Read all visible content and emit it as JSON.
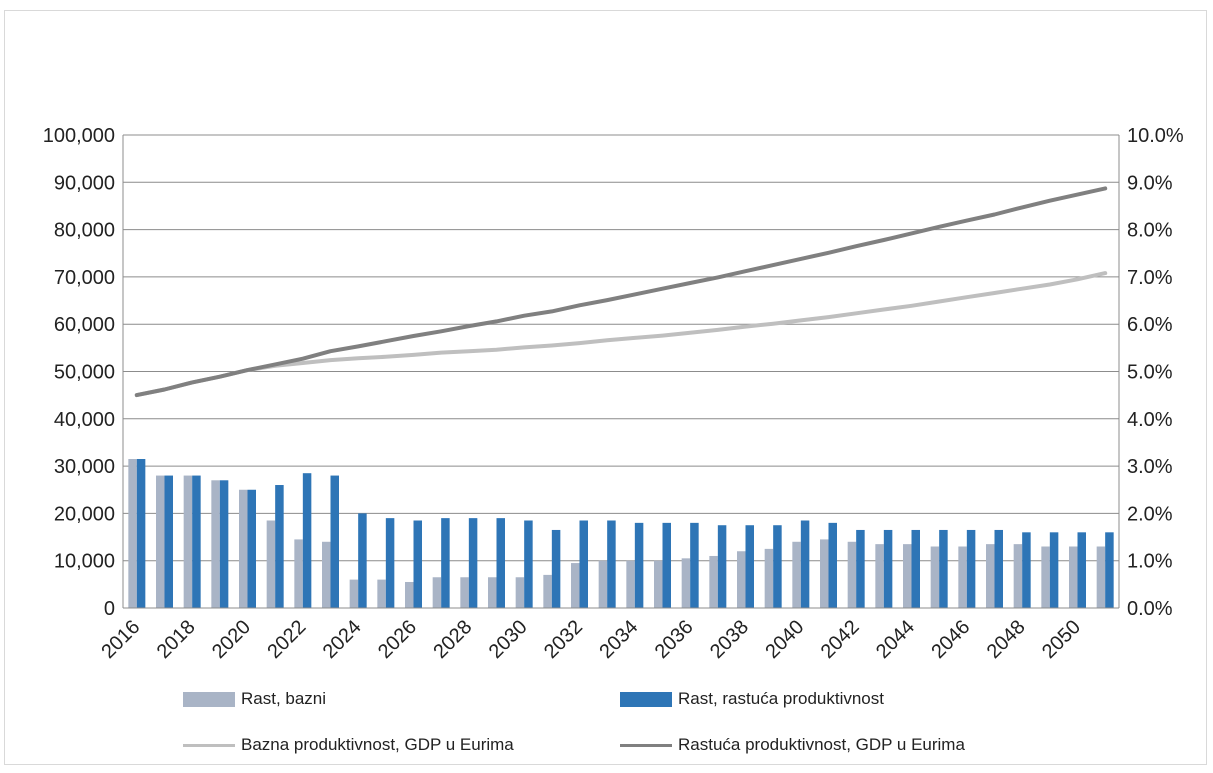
{
  "chart_data": {
    "type": "bar",
    "categories": [
      "2016",
      "2017",
      "2018",
      "2019",
      "2020",
      "2021",
      "2022",
      "2023",
      "2024",
      "2025",
      "2026",
      "2027",
      "2028",
      "2029",
      "2030",
      "2031",
      "2032",
      "2033",
      "2034",
      "2035",
      "2036",
      "2037",
      "2038",
      "2039",
      "2040",
      "2041",
      "2042",
      "2043",
      "2044",
      "2045",
      "2046",
      "2047",
      "2048",
      "2049",
      "2050",
      "2051"
    ],
    "x_tick_labels": [
      "2016",
      "2018",
      "2020",
      "2022",
      "2024",
      "2026",
      "2028",
      "2030",
      "2032",
      "2034",
      "2036",
      "2038",
      "2040",
      "2042",
      "2044",
      "2046",
      "2048",
      "2050"
    ],
    "y_left": {
      "ylim": [
        0,
        100000
      ],
      "ticks": [
        "0",
        "10,000",
        "20,000",
        "30,000",
        "40,000",
        "50,000",
        "60,000",
        "70,000",
        "80,000",
        "90,000",
        "100,000"
      ]
    },
    "y_right": {
      "ylim": [
        0,
        10
      ],
      "ticks": [
        "0.0%",
        "1.0%",
        "2.0%",
        "3.0%",
        "4.0%",
        "5.0%",
        "6.0%",
        "7.0%",
        "8.0%",
        "9.0%",
        "10.0%"
      ]
    },
    "grid": true,
    "legend_position": "bottom",
    "series": [
      {
        "name": "Rast, bazni",
        "kind": "bar",
        "axis": "right",
        "color": "#a9b4c6",
        "values": [
          3.15,
          2.8,
          2.8,
          2.7,
          2.5,
          1.85,
          1.45,
          1.4,
          0.6,
          0.6,
          0.55,
          0.65,
          0.65,
          0.65,
          0.65,
          0.7,
          0.95,
          1.0,
          1.0,
          1.0,
          1.05,
          1.1,
          1.2,
          1.25,
          1.4,
          1.45,
          1.4,
          1.35,
          1.35,
          1.3,
          1.3,
          1.35,
          1.35,
          1.3,
          1.3,
          1.3
        ]
      },
      {
        "name": "Rast, rastuća produktivnost",
        "kind": "bar",
        "axis": "right",
        "color": "#2e75b6",
        "values": [
          3.15,
          2.8,
          2.8,
          2.7,
          2.5,
          2.6,
          2.85,
          2.8,
          2.0,
          1.9,
          1.85,
          1.9,
          1.9,
          1.9,
          1.85,
          1.65,
          1.85,
          1.85,
          1.8,
          1.8,
          1.8,
          1.75,
          1.75,
          1.75,
          1.85,
          1.8,
          1.65,
          1.65,
          1.65,
          1.65,
          1.65,
          1.65,
          1.6,
          1.6,
          1.6,
          1.6
        ]
      },
      {
        "name": "Bazna produktivnost, GDP u Eurima",
        "kind": "line",
        "axis": "left",
        "color": "#bfbfbf",
        "values": [
          45000,
          46200,
          47700,
          48900,
          50300,
          51200,
          51800,
          52400,
          52800,
          53100,
          53500,
          54000,
          54300,
          54600,
          55100,
          55500,
          56000,
          56600,
          57100,
          57600,
          58200,
          58800,
          59500,
          60100,
          60800,
          61500,
          62300,
          63100,
          63900,
          64800,
          65700,
          66600,
          67500,
          68400,
          69500,
          70800
        ]
      },
      {
        "name": "Rastuća produktivnost, GDP u Eurima",
        "kind": "line",
        "axis": "left",
        "color": "#808080",
        "values": [
          45000,
          46200,
          47700,
          48900,
          50300,
          51500,
          52700,
          54300,
          55300,
          56400,
          57500,
          58500,
          59600,
          60600,
          61800,
          62700,
          64000,
          65100,
          66300,
          67500,
          68700,
          69900,
          71200,
          72500,
          73800,
          75100,
          76500,
          77800,
          79200,
          80600,
          81900,
          83200,
          84700,
          86100,
          87400,
          88700
        ]
      }
    ]
  }
}
